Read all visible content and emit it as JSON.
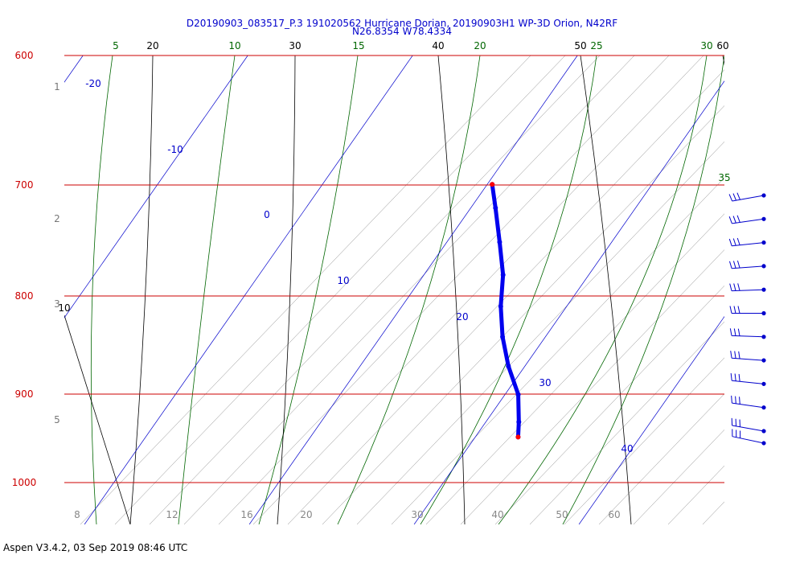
{
  "title_line1": "D20190903_083517_P.3 191020562 Hurricane Dorian, 20190903H1 WP-3D Orion, N42RF",
  "title_line2": "N26.8354 W78.4334",
  "footer": "Aspen V3.4.2, 03 Sep 2019  08:46 UTC",
  "colors": {
    "isobar": "#cc0000",
    "isotherm": "#0000cc",
    "dry_adiabat": "#000000",
    "moist_adiabat": "#006600",
    "mixing_ratio": "#888888",
    "sounding": "#0000ee",
    "sounding_end": "#ff0000",
    "wind_barb": "#0000cc"
  },
  "chart_data": {
    "type": "skew-t",
    "pressure_levels": [
      "600",
      "700",
      "800",
      "900",
      "1000"
    ],
    "height_labels": [
      "1",
      "2",
      "3",
      "5"
    ],
    "isotherm_labels": [
      "-20",
      "-10",
      "0",
      "10",
      "20",
      "30",
      "40"
    ],
    "dry_adiabat_top_labels": [
      "20",
      "30",
      "40",
      "50",
      "60"
    ],
    "dry_adiabat_left_label": "10",
    "moist_adiabat_labels": [
      "5",
      "10",
      "15",
      "20",
      "25",
      "30",
      "35"
    ],
    "mixing_ratio_bottom_labels": [
      "8",
      "12",
      "16",
      "20",
      "30",
      "40",
      "50",
      "60"
    ],
    "sounding": [
      {
        "p": 700,
        "t": 10.3
      },
      {
        "p": 720,
        "t": 11.5
      },
      {
        "p": 750,
        "t": 13.2
      },
      {
        "p": 780,
        "t": 14.8
      },
      {
        "p": 810,
        "t": 16.0
      },
      {
        "p": 840,
        "t": 17.4
      },
      {
        "p": 870,
        "t": 19.0
      },
      {
        "p": 900,
        "t": 20.8
      },
      {
        "p": 930,
        "t": 22.0
      },
      {
        "p": 947,
        "t": 22.6
      }
    ],
    "wind_barb_pressures": [
      705,
      725,
      745,
      765,
      785,
      805,
      825,
      845,
      865,
      885,
      905,
      917
    ]
  }
}
